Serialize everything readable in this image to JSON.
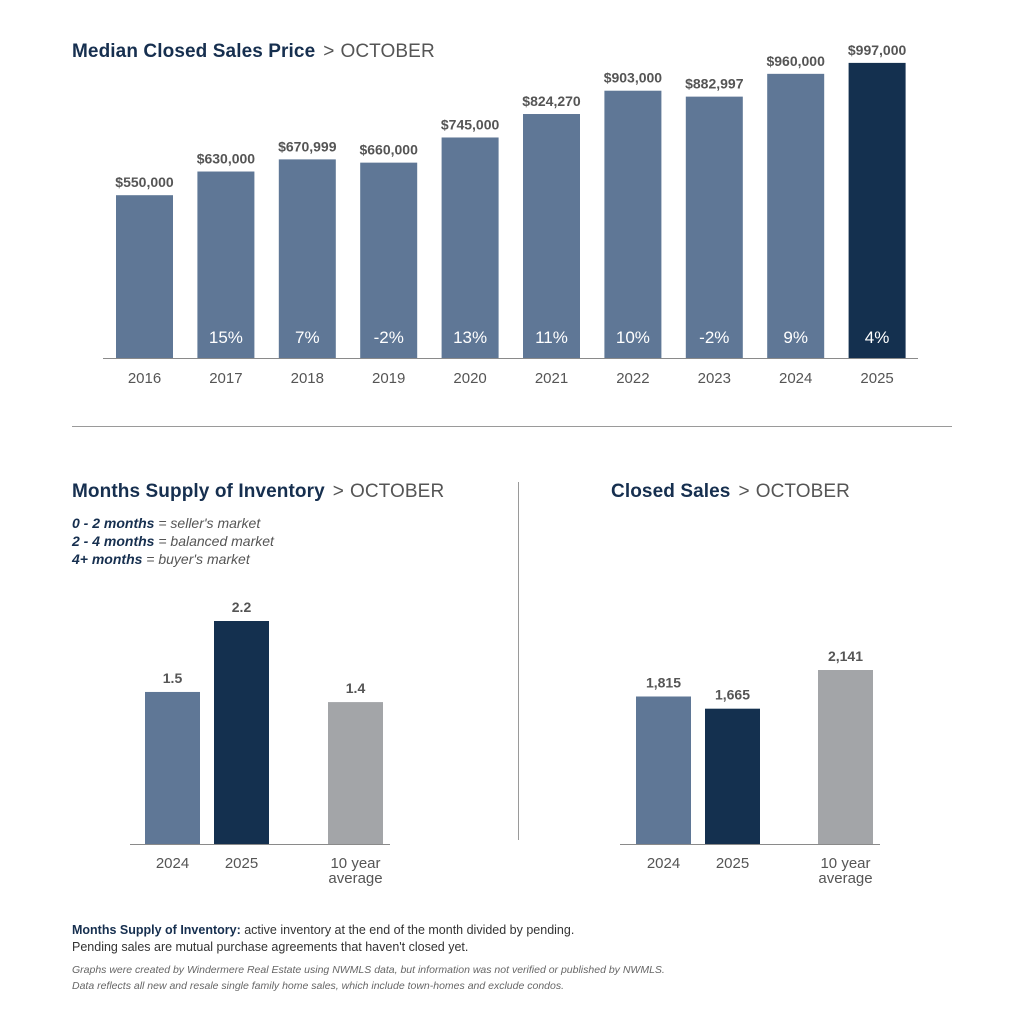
{
  "colors": {
    "bar": "#5f7796",
    "highlight": "#14304f",
    "average": "#a3a5a8",
    "title": "#162f4f",
    "axis": "#555555",
    "pct_text": "#ffffff"
  },
  "sections": {
    "price": {
      "title": "Median Closed Sales Price",
      "separator": ">",
      "subtitle": "OCTOBER"
    },
    "supply": {
      "title": "Months Supply of Inventory",
      "separator": ">",
      "subtitle": "OCTOBER"
    },
    "sales": {
      "title": "Closed Sales",
      "separator": ">",
      "subtitle": "OCTOBER"
    }
  },
  "legend": [
    {
      "range": "0 - 2 months",
      "text": "= seller's market"
    },
    {
      "range": "2 - 4 months",
      "text": "= balanced market"
    },
    {
      "range": "4+ months",
      "text": "= buyer's market"
    }
  ],
  "footnote": {
    "label": "Months Supply of Inventory:",
    "line1": "active inventory at the end of the month divided by pending.",
    "line2": "Pending sales are mutual purchase agreements that haven't closed yet."
  },
  "disclaimer": {
    "line1": "Graphs were created by Windermere Real Estate using NWMLS data, but information was not verified or published by NWMLS.",
    "line2": "Data reflects all new and resale single family home sales, which include town-homes and exclude condos."
  },
  "chart_data": [
    {
      "id": "price",
      "type": "bar",
      "categories": [
        "2016",
        "2017",
        "2018",
        "2019",
        "2020",
        "2021",
        "2022",
        "2023",
        "2024",
        "2025"
      ],
      "values": [
        550000,
        630000,
        670999,
        660000,
        745000,
        824270,
        903000,
        882997,
        960000,
        997000
      ],
      "value_labels": [
        "$550,000",
        "$630,000",
        "$670,999",
        "$660,000",
        "$745,000",
        "$824,270",
        "$903,000",
        "$882,997",
        "$960,000",
        "$997,000"
      ],
      "pct_labels": [
        "",
        "15%",
        "7%",
        "-2%",
        "13%",
        "11%",
        "10%",
        "-2%",
        "9%",
        "4%"
      ],
      "highlight_index": 9,
      "ylim": [
        0,
        1000000
      ]
    },
    {
      "id": "supply",
      "type": "bar",
      "categories": [
        "2024",
        "2025",
        "10 year average"
      ],
      "values": [
        1.5,
        2.2,
        1.4
      ],
      "value_labels": [
        "1.5",
        "2.2",
        "1.4"
      ],
      "bar_roles": [
        "normal",
        "highlight",
        "average"
      ],
      "ylim": [
        0,
        2.2
      ]
    },
    {
      "id": "sales",
      "type": "bar",
      "categories": [
        "2024",
        "2025",
        "10 year average"
      ],
      "values": [
        1815,
        1665,
        2141
      ],
      "value_labels": [
        "1,815",
        "1,665",
        "2,141"
      ],
      "bar_roles": [
        "normal",
        "highlight",
        "average"
      ],
      "ylim": [
        0,
        2141
      ]
    }
  ]
}
